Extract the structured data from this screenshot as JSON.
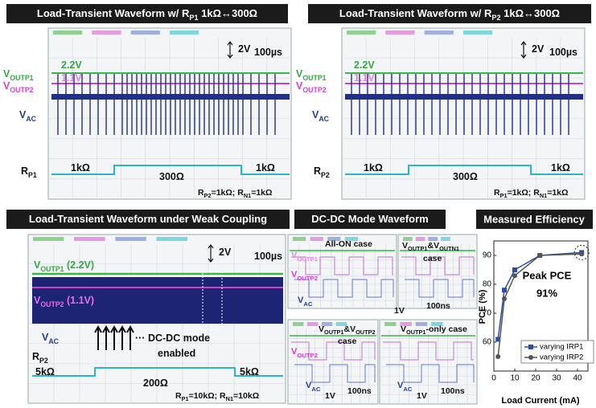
{
  "panels": [
    {
      "title": [
        "Load-Transient Waveform w/ R",
        "P1",
        " 1kΩ↔300Ω"
      ],
      "labels": {
        "scale_v": [
          "2V"
        ],
        "scale_t": [
          "100µs"
        ],
        "v1_level": [
          "2.2V"
        ],
        "v2_level": [
          "1.1V"
        ],
        "v1": [
          "V",
          "OUTP1"
        ],
        "v2": [
          "V",
          "OUTP2"
        ],
        "vac": [
          "V",
          "AC"
        ],
        "r": [
          "R",
          "P1"
        ],
        "r_a": [
          "1kΩ"
        ],
        "r_b": [
          "300Ω"
        ],
        "r_c": [
          "1kΩ"
        ],
        "cond": [
          "R",
          "P2",
          "=1kΩ; R",
          "N1",
          "=1kΩ"
        ]
      }
    },
    {
      "title": [
        "Load-Transient Waveform w/ R",
        "P2",
        " 1kΩ↔300Ω"
      ],
      "labels": {
        "scale_v": [
          "2V"
        ],
        "scale_t": [
          "100µs"
        ],
        "v1_level": [
          "2.2V"
        ],
        "v2_level": [
          "1.1V"
        ],
        "v1": [
          "V",
          "OUTP1"
        ],
        "v2": [
          "V",
          "OUTP2"
        ],
        "vac": [
          "V",
          "AC"
        ],
        "r": [
          "R",
          "P2"
        ],
        "r_a": [
          "1kΩ"
        ],
        "r_b": [
          "300Ω"
        ],
        "r_c": [
          "1kΩ"
        ],
        "cond": [
          "R",
          "P1",
          "=1kΩ; R",
          "N1",
          "=1kΩ"
        ]
      }
    },
    {
      "title": [
        "Load-Transient Waveform under Weak Coupling"
      ],
      "labels": {
        "scale_v": [
          "2V"
        ],
        "scale_t": [
          "100µs"
        ],
        "v1": [
          "V",
          "OUTP1",
          " (2.2V)"
        ],
        "v2": [
          "V",
          "OUTP2",
          " (1.1V)"
        ],
        "vac": [
          "V",
          "AC"
        ],
        "r": [
          "R",
          "P2"
        ],
        "note1": [
          "··· DC-DC mode"
        ],
        "note2": [
          "enabled"
        ],
        "r_a": [
          "5kΩ"
        ],
        "r_b": [
          "200Ω"
        ],
        "r_c": [
          "5kΩ"
        ],
        "cond": [
          "R",
          "P1",
          "=10kΩ; R",
          "N1",
          "=10kΩ"
        ]
      }
    },
    {
      "title": [
        "DC-DC Mode Waveform"
      ],
      "labels": {
        "case1": [
          "All-ON case"
        ],
        "v1": [
          "V",
          "OUTP1"
        ],
        "v2": [
          "V",
          "OUTP2"
        ],
        "vac": [
          "V",
          "AC"
        ],
        "case2a": [
          "V",
          "OUTP1",
          "&V",
          "OUTN1"
        ],
        "case2b": [
          "case"
        ],
        "scale_v1": [
          "1V"
        ],
        "scale_t1": [
          "100ns"
        ],
        "case3a": [
          "V",
          "OUTP1",
          "&V",
          "OUTP2"
        ],
        "case3b": [
          "case"
        ],
        "v2_3": [
          "V",
          "OUTP2"
        ],
        "vac_3": [
          "V",
          "AC"
        ],
        "scale_v3": [
          "1V"
        ],
        "scale_t3": [
          "100ns"
        ],
        "case4": [
          "V",
          "OUTP1",
          "-only case"
        ],
        "vac_4": [
          "V",
          "AC"
        ],
        "scale_v4": [
          "1V"
        ],
        "scale_t4": [
          "100ns"
        ]
      }
    }
  ],
  "chart_data": {
    "type": "line",
    "title": "Measured Efficiency",
    "x_label": "Load Current (mA)",
    "y_label": "PCE (%)",
    "x": [
      2,
      5,
      10,
      22,
      42
    ],
    "series": [
      {
        "name": "varying IRP1",
        "color": "#2a4fa0",
        "marker": "square",
        "values": [
          61,
          78,
          85,
          90,
          91
        ]
      },
      {
        "name": "varying IRP2",
        "color": "#555555",
        "marker": "circle",
        "values": [
          55,
          75,
          83,
          90,
          90.5
        ]
      }
    ],
    "xlim": [
      0,
      45
    ],
    "ylim": [
      50,
      95
    ],
    "xticks": [
      0,
      10,
      20,
      30,
      40
    ],
    "yticks": [
      60,
      70,
      80,
      90
    ],
    "annotations": [
      "Peak PCE",
      "91%"
    ]
  }
}
